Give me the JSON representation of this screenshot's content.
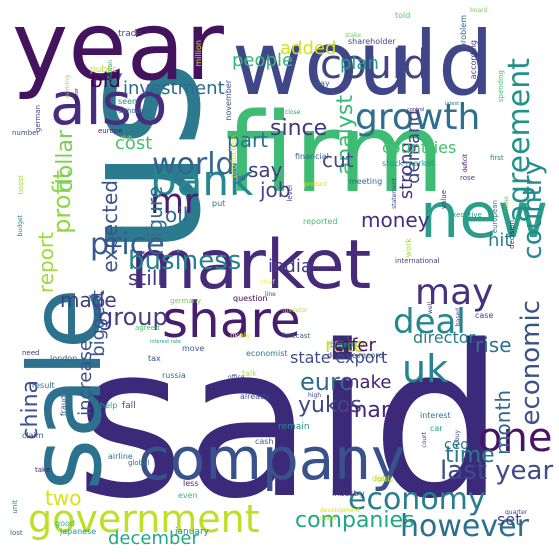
{
  "words": [
    {
      "text": "said",
      "color": "#3b2a7a"
    },
    {
      "text": "us",
      "color": "#2b7a8e"
    },
    {
      "text": "year",
      "color": "#44135e"
    },
    {
      "text": "would",
      "color": "#3f4788"
    },
    {
      "text": "firm",
      "color": "#3fbc73"
    },
    {
      "text": "company",
      "color": "#3b518b"
    },
    {
      "text": "market",
      "color": "#472a7a"
    },
    {
      "text": "sale",
      "color": "#2c728e"
    },
    {
      "text": "new",
      "color": "#2a9e8a"
    },
    {
      "text": "also",
      "color": "#472d7b"
    },
    {
      "text": "share",
      "color": "#471d6d"
    },
    {
      "text": "government",
      "color": "#bddf26"
    },
    {
      "text": "bank",
      "color": "#23898e"
    },
    {
      "text": "growth",
      "color": "#2e6f8e"
    },
    {
      "text": "could",
      "color": "#414487"
    },
    {
      "text": "one",
      "color": "#481467"
    },
    {
      "text": "economy",
      "color": "#277f8e"
    },
    {
      "text": "uk",
      "color": "#25848e"
    },
    {
      "text": "deal",
      "color": "#24868e"
    },
    {
      "text": "may",
      "color": "#46327e"
    },
    {
      "text": "agreement",
      "color": "#21918c"
    },
    {
      "text": "however",
      "color": "#2d708e"
    },
    {
      "text": "world",
      "color": "#32658e"
    },
    {
      "text": "business",
      "color": "#26828e"
    },
    {
      "text": "last year",
      "color": "#3e4a89"
    },
    {
      "text": "price",
      "color": "#365c8d"
    },
    {
      "text": "economic",
      "color": "#3c508b"
    },
    {
      "text": "group",
      "color": "#433e85"
    },
    {
      "text": "country",
      "color": "#238a8d"
    },
    {
      "text": "companies",
      "color": "#22a785"
    },
    {
      "text": "rise",
      "color": "#2c738e"
    },
    {
      "text": "mr",
      "color": "#481f70"
    },
    {
      "text": "profit",
      "color": "#8fd744"
    },
    {
      "text": "analyst",
      "color": "#38b977"
    },
    {
      "text": "report",
      "color": "#9bd93c"
    },
    {
      "text": "dollar",
      "color": "#7ad151"
    },
    {
      "text": "rate",
      "color": "#c2df23"
    },
    {
      "text": "month",
      "color": "#31688e"
    },
    {
      "text": "time",
      "color": "#297a8e"
    },
    {
      "text": "china",
      "color": "#3b528b"
    },
    {
      "text": "euro",
      "color": "#2f6b8e"
    },
    {
      "text": "yukos",
      "color": "#404688"
    },
    {
      "text": "many",
      "color": "#482576"
    },
    {
      "text": "still",
      "color": "#453882"
    },
    {
      "text": "expected",
      "color": "#3a548c"
    },
    {
      "text": "figure",
      "color": "#2e6e8e"
    },
    {
      "text": "job",
      "color": "#404387"
    },
    {
      "text": "india",
      "color": "#443983"
    },
    {
      "text": "offer",
      "color": "#471164"
    },
    {
      "text": "say",
      "color": "#424086"
    },
    {
      "text": "since",
      "color": "#453781"
    },
    {
      "text": "cut",
      "color": "#3e4989"
    },
    {
      "text": "cost",
      "color": "#4ac16d"
    },
    {
      "text": "money",
      "color": "#472c7a"
    },
    {
      "text": "part",
      "color": "#2c718e"
    },
    {
      "text": "strong",
      "color": "#46307e"
    },
    {
      "text": "made",
      "color": "#433d84"
    },
    {
      "text": "plan",
      "color": "#1fa088"
    },
    {
      "text": "oil",
      "color": "#31678e"
    },
    {
      "text": "two",
      "color": "#dae319"
    },
    {
      "text": "increase",
      "color": "#3d4e8a"
    },
    {
      "text": "biggest",
      "color": "#3b528b"
    },
    {
      "text": "make",
      "color": "#482071"
    },
    {
      "text": "december",
      "color": "#22a884"
    },
    {
      "text": "added",
      "color": "#d2e21b"
    },
    {
      "text": "people",
      "color": "#35b779"
    },
    {
      "text": "investment",
      "color": "#31688e"
    },
    {
      "text": "hit",
      "color": "#25838e"
    },
    {
      "text": "demand",
      "color": "#3f4889"
    },
    {
      "text": "bid",
      "color": "#440154"
    },
    {
      "text": "countries",
      "color": "#46c06f"
    },
    {
      "text": "state export",
      "color": "#3e4c8a"
    },
    {
      "text": "director",
      "color": "#287d8e"
    },
    {
      "text": "set",
      "color": "#3d4d8a"
    },
    {
      "text": "ceo",
      "color": "#2a768e"
    }
  ],
  "small_words": [
    "told",
    "board",
    "problem",
    "million",
    "trade",
    "inflation",
    "earning",
    "public",
    "november",
    "shareholder",
    "stake",
    "according",
    "spending",
    "sector",
    "seen",
    "although",
    "german",
    "number",
    "day",
    "control",
    "latest",
    "europe",
    "club",
    "close",
    "financial",
    "product",
    "fell",
    "meeting",
    "deficit",
    "first",
    "rose",
    "european",
    "production",
    "statement",
    "stock market",
    "come",
    "work",
    "boost",
    "put",
    "level",
    "reported",
    "international",
    "value",
    "decision",
    "executive",
    "chief",
    "question",
    "line",
    "investor",
    "case",
    "well",
    "based",
    "budget",
    "forecast",
    "agreed",
    "move",
    "likely",
    "germany",
    "interest rate",
    "need",
    "london",
    "result",
    "help",
    "tax",
    "russia",
    "despite",
    "record",
    "talk",
    "fall",
    "airline",
    "high",
    "cash",
    "already",
    "interest",
    "claim",
    "remain",
    "car",
    "take",
    "global",
    "less",
    "court",
    "buy",
    "unit",
    "even",
    "good",
    "fraud",
    "japanese",
    "january",
    "industry",
    "debt",
    "future",
    "lost",
    "development",
    "major",
    "office",
    "project",
    "economist",
    "quarter",
    "firm said"
  ]
}
